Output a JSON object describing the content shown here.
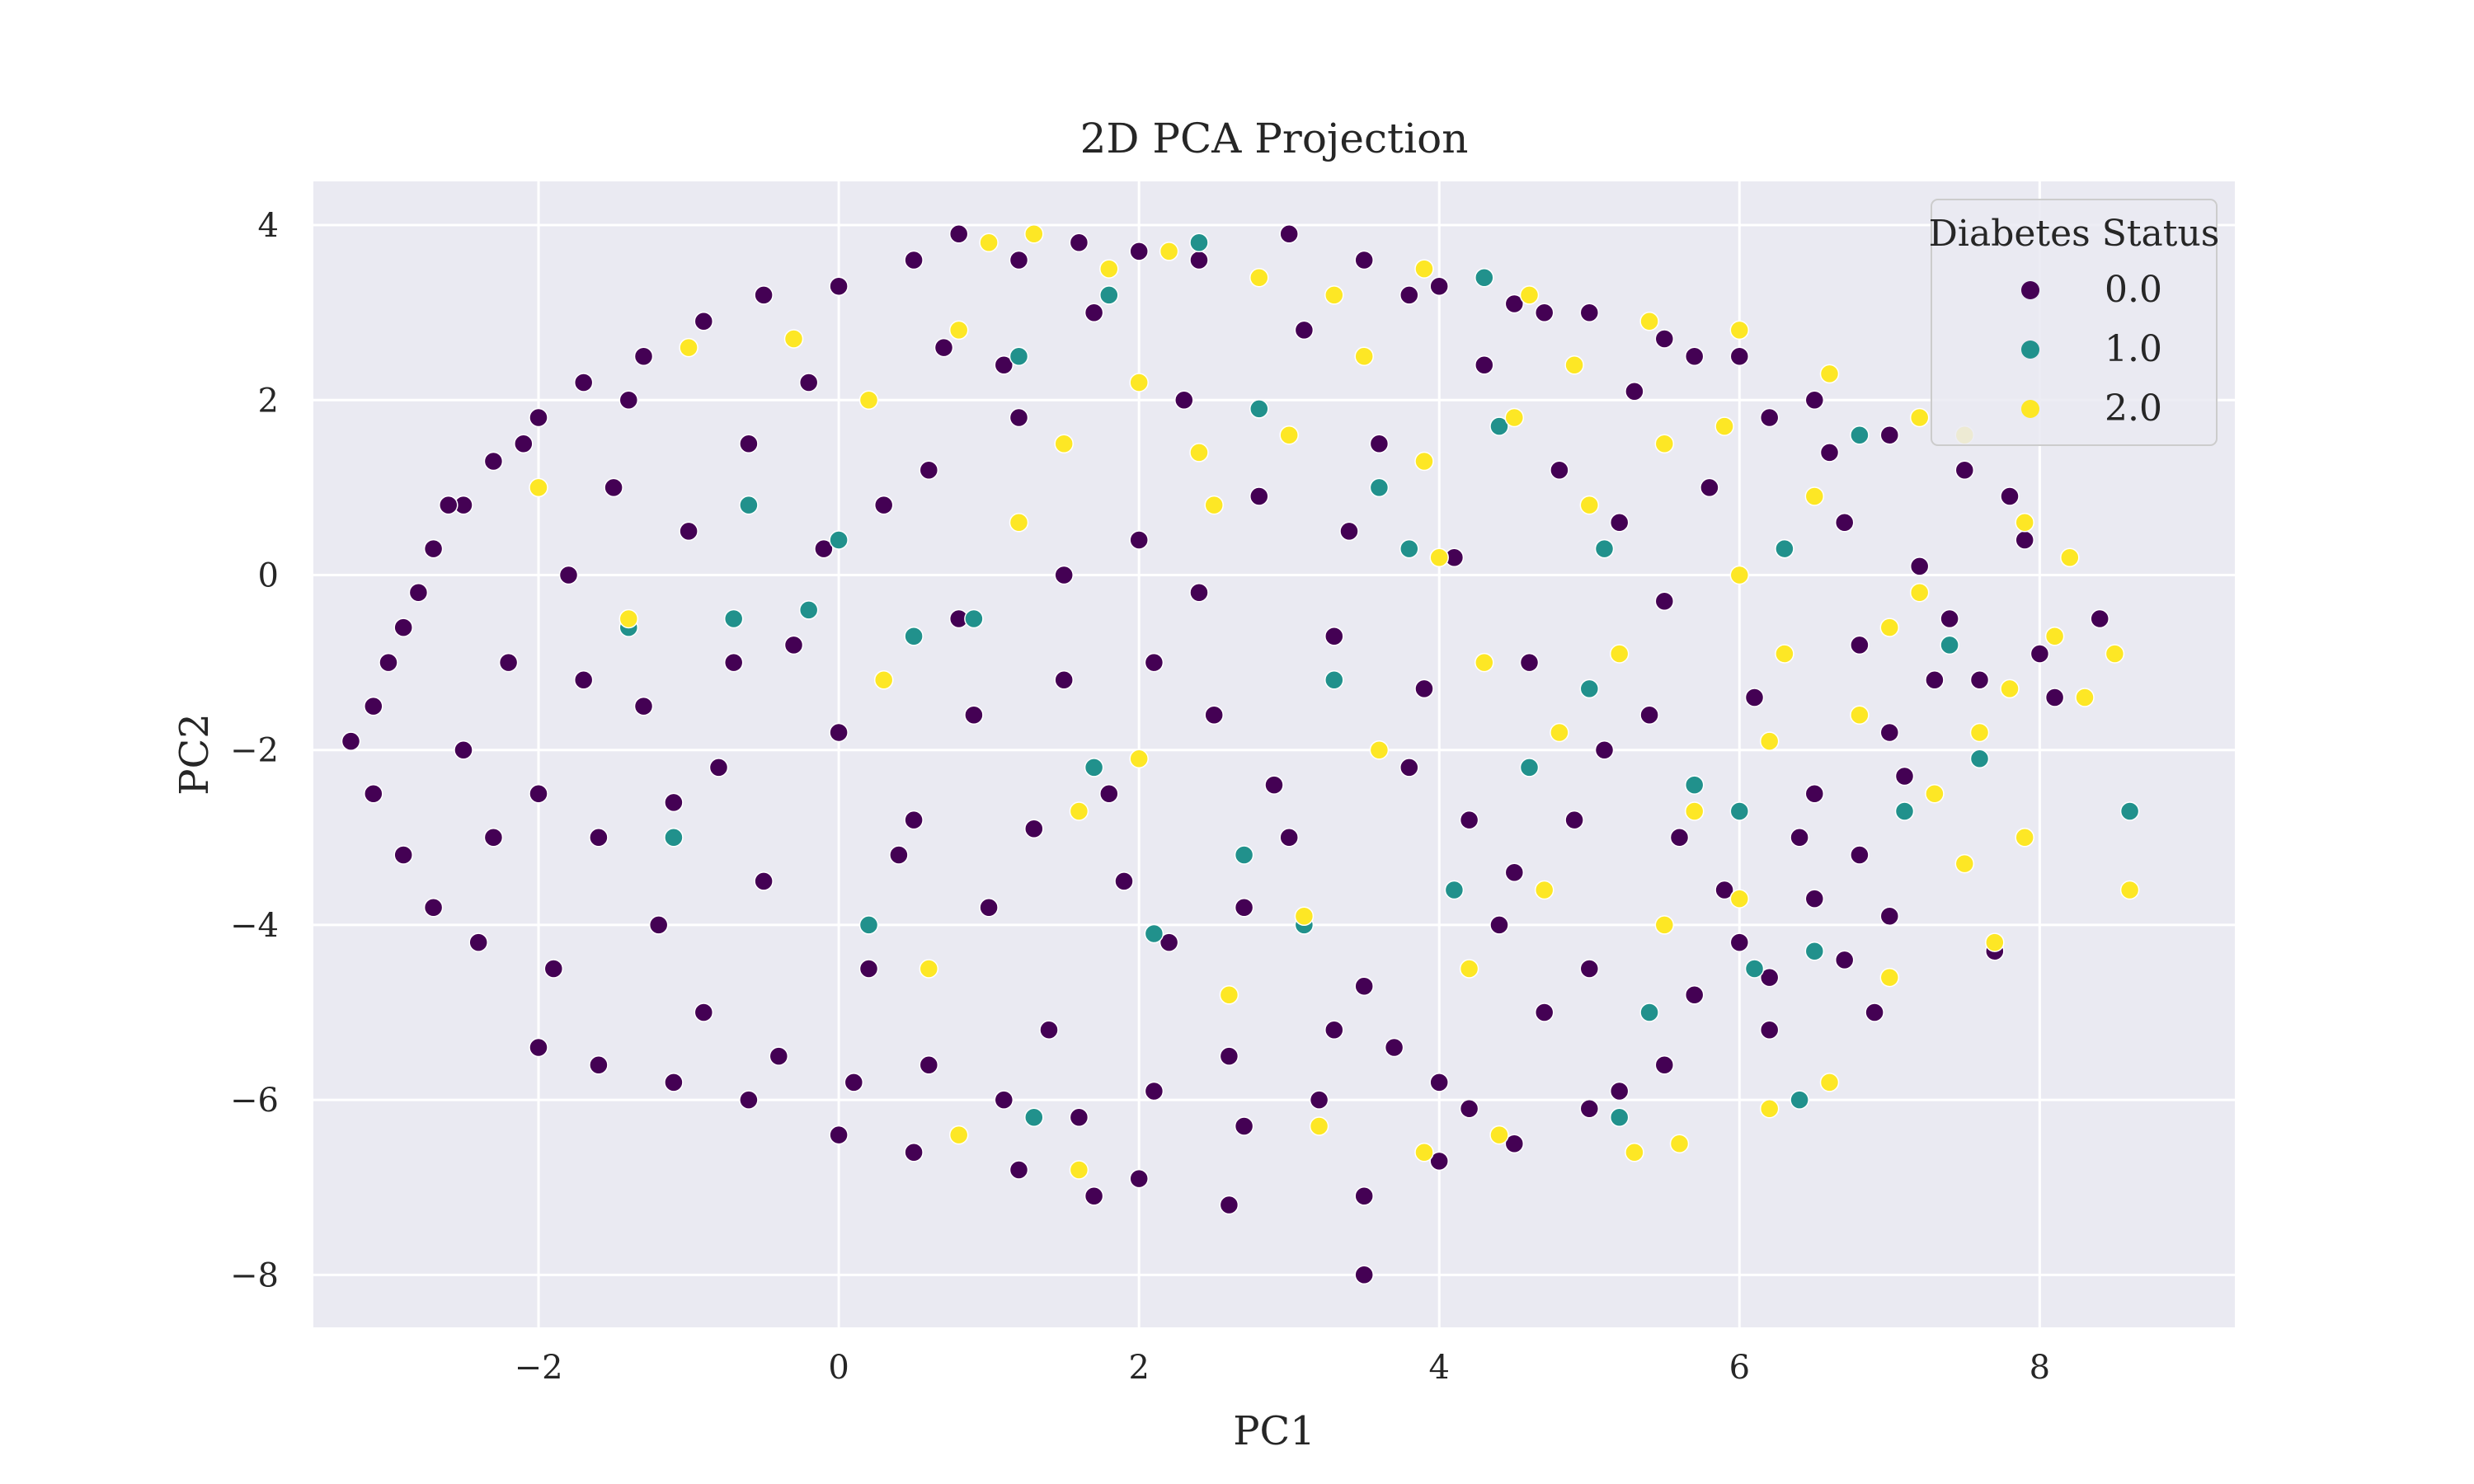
{
  "chart_data": {
    "type": "scatter",
    "title": "2D PCA Projection",
    "xlabel": "PC1",
    "ylabel": "PC2",
    "xlim": [
      -3.5,
      9.3
    ],
    "ylim": [
      -8.6,
      4.5
    ],
    "x_ticks": [
      -2,
      0,
      2,
      4,
      6,
      8
    ],
    "y_ticks": [
      4,
      2,
      0,
      -2,
      -4,
      -6,
      -8
    ],
    "x_tick_labels": [
      "−2",
      "0",
      "2",
      "4",
      "6",
      "8"
    ],
    "y_tick_labels": [
      "4",
      "2",
      "0",
      "−2",
      "−4",
      "−6",
      "−8"
    ],
    "grid": true,
    "legend": {
      "title": "Diabetes Status",
      "placement": "top-right",
      "entries": [
        "0.0",
        "1.0",
        "2.0"
      ]
    },
    "colors": {
      "background": "#eaeaf2",
      "grid": "#ffffff",
      "class_0": "#440154",
      "class_1": "#21918c",
      "class_2": "#fde725",
      "marker_edge": "#ffffff"
    },
    "series": [
      {
        "name": "0.0",
        "color": "#440154",
        "points": [
          [
            -3.25,
            -1.9
          ],
          [
            -3.1,
            -1.5
          ],
          [
            -3.0,
            -1.0
          ],
          [
            -2.9,
            -0.6
          ],
          [
            -2.8,
            -0.2
          ],
          [
            -2.7,
            0.3
          ],
          [
            -2.5,
            0.8
          ],
          [
            -2.3,
            1.3
          ],
          [
            -2.0,
            1.8
          ],
          [
            -1.7,
            2.2
          ],
          [
            -1.3,
            2.5
          ],
          [
            -0.9,
            2.9
          ],
          [
            -0.5,
            3.2
          ],
          [
            0.0,
            3.3
          ],
          [
            0.5,
            3.6
          ],
          [
            0.8,
            3.9
          ],
          [
            1.2,
            3.6
          ],
          [
            1.6,
            3.8
          ],
          [
            2.0,
            3.7
          ],
          [
            2.4,
            3.6
          ],
          [
            3.0,
            3.9
          ],
          [
            3.5,
            3.6
          ],
          [
            4.0,
            3.3
          ],
          [
            4.5,
            3.1
          ],
          [
            5.0,
            3.0
          ],
          [
            5.5,
            2.7
          ],
          [
            6.0,
            2.5
          ],
          [
            6.5,
            2.0
          ],
          [
            7.0,
            1.6
          ],
          [
            7.5,
            1.2
          ],
          [
            7.8,
            0.9
          ],
          [
            8.4,
            -0.5
          ],
          [
            8.0,
            -0.9
          ],
          [
            7.6,
            -1.2
          ],
          [
            7.1,
            -2.3
          ],
          [
            6.8,
            -3.2
          ],
          [
            6.5,
            -3.7
          ],
          [
            7.0,
            -3.9
          ],
          [
            7.7,
            -4.3
          ],
          [
            6.9,
            -5.0
          ],
          [
            6.2,
            -5.2
          ],
          [
            5.5,
            -5.6
          ],
          [
            5.0,
            -6.1
          ],
          [
            4.5,
            -6.5
          ],
          [
            4.0,
            -6.7
          ],
          [
            3.5,
            -7.1
          ],
          [
            3.5,
            -8.0
          ],
          [
            2.6,
            -7.2
          ],
          [
            2.0,
            -6.9
          ],
          [
            1.7,
            -7.1
          ],
          [
            1.2,
            -6.8
          ],
          [
            0.5,
            -6.6
          ],
          [
            0.0,
            -6.4
          ],
          [
            -0.6,
            -6.0
          ],
          [
            -1.1,
            -5.8
          ],
          [
            -1.6,
            -5.6
          ],
          [
            -2.0,
            -5.4
          ],
          [
            -2.4,
            -4.2
          ],
          [
            -2.7,
            -3.8
          ],
          [
            -2.9,
            -3.2
          ],
          [
            -3.1,
            -2.5
          ],
          [
            -2.5,
            -2.0
          ],
          [
            -2.2,
            -1.0
          ],
          [
            -2.0,
            -2.5
          ],
          [
            -1.8,
            0.0
          ],
          [
            -1.6,
            -3.0
          ],
          [
            -1.5,
            1.0
          ],
          [
            -1.3,
            -1.5
          ],
          [
            -1.2,
            -4.0
          ],
          [
            -1.0,
            0.5
          ],
          [
            -0.8,
            -2.2
          ],
          [
            -0.6,
            1.5
          ],
          [
            -0.5,
            -3.5
          ],
          [
            -0.3,
            -0.8
          ],
          [
            -0.2,
            2.2
          ],
          [
            0.0,
            -1.8
          ],
          [
            0.2,
            -4.5
          ],
          [
            0.3,
            0.8
          ],
          [
            0.5,
            -2.8
          ],
          [
            0.7,
            2.6
          ],
          [
            0.8,
            -0.5
          ],
          [
            1.0,
            -3.8
          ],
          [
            1.2,
            1.8
          ],
          [
            1.4,
            -5.2
          ],
          [
            1.5,
            -1.2
          ],
          [
            1.7,
            3.0
          ],
          [
            1.8,
            -2.5
          ],
          [
            2.0,
            0.4
          ],
          [
            2.2,
            -4.2
          ],
          [
            2.3,
            2.0
          ],
          [
            2.5,
            -1.6
          ],
          [
            2.6,
            -5.5
          ],
          [
            2.8,
            0.9
          ],
          [
            3.0,
            -3.0
          ],
          [
            3.1,
            2.8
          ],
          [
            3.3,
            -0.7
          ],
          [
            3.5,
            -4.7
          ],
          [
            3.6,
            1.5
          ],
          [
            3.8,
            -2.2
          ],
          [
            4.0,
            -5.8
          ],
          [
            4.1,
            0.2
          ],
          [
            4.3,
            2.4
          ],
          [
            4.5,
            -3.4
          ],
          [
            4.6,
            -1.0
          ],
          [
            4.8,
            1.2
          ],
          [
            5.0,
            -4.5
          ],
          [
            5.1,
            -2.0
          ],
          [
            5.3,
            2.1
          ],
          [
            5.5,
            -0.3
          ],
          [
            5.6,
            -3.0
          ],
          [
            5.8,
            1.0
          ],
          [
            6.0,
            -4.2
          ],
          [
            6.1,
            -1.4
          ],
          [
            6.3,
            0.3
          ],
          [
            6.5,
            -2.5
          ],
          [
            6.6,
            1.4
          ],
          [
            6.8,
            -0.8
          ],
          [
            7.0,
            -1.8
          ],
          [
            7.2,
            0.1
          ],
          [
            7.4,
            -0.5
          ],
          [
            -2.6,
            0.8
          ],
          [
            -2.1,
            1.5
          ],
          [
            -1.9,
            -4.5
          ],
          [
            -1.4,
            2.0
          ],
          [
            -0.9,
            -5.0
          ],
          [
            -0.4,
            -5.5
          ],
          [
            0.1,
            -5.8
          ],
          [
            0.6,
            -5.6
          ],
          [
            1.1,
            -6.0
          ],
          [
            1.6,
            -6.2
          ],
          [
            2.1,
            -5.9
          ],
          [
            2.7,
            -6.3
          ],
          [
            3.2,
            -6.0
          ],
          [
            3.7,
            -5.4
          ],
          [
            4.2,
            -6.1
          ],
          [
            4.7,
            -5.0
          ],
          [
            5.2,
            -5.9
          ],
          [
            5.7,
            -4.8
          ],
          [
            6.2,
            -4.6
          ],
          [
            6.7,
            -4.4
          ],
          [
            -1.1,
            -2.6
          ],
          [
            -0.7,
            -1.0
          ],
          [
            0.4,
            -3.2
          ],
          [
            0.9,
            -1.6
          ],
          [
            1.3,
            -2.9
          ],
          [
            1.9,
            -3.5
          ],
          [
            2.4,
            -0.2
          ],
          [
            2.9,
            -2.4
          ],
          [
            3.4,
            0.5
          ],
          [
            3.9,
            -1.3
          ],
          [
            4.4,
            -4.0
          ],
          [
            4.9,
            -2.8
          ],
          [
            5.4,
            -1.6
          ],
          [
            5.9,
            -3.6
          ],
          [
            6.4,
            -3.0
          ],
          [
            -2.3,
            -3.0
          ],
          [
            -1.7,
            -1.2
          ],
          [
            -0.1,
            0.3
          ],
          [
            0.6,
            1.2
          ],
          [
            1.1,
            2.4
          ],
          [
            1.5,
            0.0
          ],
          [
            2.1,
            -1.0
          ],
          [
            2.7,
            -3.8
          ],
          [
            3.3,
            -5.2
          ],
          [
            3.8,
            3.2
          ],
          [
            4.2,
            -2.8
          ],
          [
            4.7,
            3.0
          ],
          [
            5.2,
            0.6
          ],
          [
            5.7,
            2.5
          ],
          [
            6.2,
            1.8
          ],
          [
            6.7,
            0.6
          ],
          [
            7.3,
            -1.2
          ],
          [
            7.9,
            0.4
          ],
          [
            8.1,
            -1.4
          ]
        ]
      },
      {
        "name": "1.0",
        "color": "#21918c",
        "points": [
          [
            -1.1,
            -3.0
          ],
          [
            -0.7,
            -0.5
          ],
          [
            -0.6,
            0.8
          ],
          [
            -0.2,
            -0.4
          ],
          [
            0.2,
            -4.0
          ],
          [
            0.5,
            -0.7
          ],
          [
            0.9,
            -0.5
          ],
          [
            1.2,
            2.5
          ],
          [
            1.3,
            -6.2
          ],
          [
            1.7,
            -2.2
          ],
          [
            1.8,
            3.2
          ],
          [
            2.1,
            -4.1
          ],
          [
            2.4,
            3.8
          ],
          [
            2.7,
            -3.2
          ],
          [
            2.8,
            1.9
          ],
          [
            3.1,
            -4.0
          ],
          [
            3.3,
            -1.2
          ],
          [
            3.8,
            0.3
          ],
          [
            4.1,
            -3.6
          ],
          [
            4.4,
            1.7
          ],
          [
            4.6,
            -2.2
          ],
          [
            5.0,
            -1.3
          ],
          [
            5.1,
            0.3
          ],
          [
            5.4,
            -5.0
          ],
          [
            5.7,
            -2.4
          ],
          [
            6.0,
            -2.7
          ],
          [
            6.1,
            -4.5
          ],
          [
            6.3,
            0.3
          ],
          [
            6.5,
            -4.3
          ],
          [
            6.8,
            1.6
          ],
          [
            7.1,
            -2.7
          ],
          [
            7.6,
            -2.1
          ],
          [
            8.6,
            -2.7
          ],
          [
            7.4,
            -0.8
          ],
          [
            6.4,
            -6.0
          ],
          [
            5.2,
            -6.2
          ],
          [
            4.3,
            3.4
          ],
          [
            -1.4,
            -0.6
          ],
          [
            0.0,
            0.4
          ],
          [
            3.6,
            1.0
          ]
        ]
      },
      {
        "name": "2.0",
        "color": "#fde725",
        "points": [
          [
            1.0,
            3.8
          ],
          [
            1.3,
            3.9
          ],
          [
            1.8,
            3.5
          ],
          [
            2.2,
            3.7
          ],
          [
            2.8,
            3.4
          ],
          [
            3.3,
            3.2
          ],
          [
            3.9,
            3.5
          ],
          [
            4.6,
            3.2
          ],
          [
            5.4,
            2.9
          ],
          [
            6.0,
            2.8
          ],
          [
            6.6,
            2.3
          ],
          [
            7.2,
            1.8
          ],
          [
            7.5,
            1.6
          ],
          [
            7.9,
            0.6
          ],
          [
            8.2,
            0.2
          ],
          [
            8.1,
            -0.7
          ],
          [
            8.5,
            -0.9
          ],
          [
            8.3,
            -1.4
          ],
          [
            7.8,
            -1.3
          ],
          [
            7.6,
            -1.8
          ],
          [
            7.3,
            -2.5
          ],
          [
            7.5,
            -3.3
          ],
          [
            7.9,
            -3.0
          ],
          [
            7.7,
            -4.2
          ],
          [
            8.6,
            -3.6
          ],
          [
            7.0,
            -4.6
          ],
          [
            6.6,
            -5.8
          ],
          [
            6.2,
            -6.1
          ],
          [
            5.6,
            -6.5
          ],
          [
            5.3,
            -6.6
          ],
          [
            4.4,
            -6.4
          ],
          [
            3.9,
            -6.6
          ],
          [
            3.2,
            -6.3
          ],
          [
            1.6,
            -6.8
          ],
          [
            0.8,
            -6.4
          ],
          [
            -0.3,
            2.7
          ],
          [
            0.2,
            2.0
          ],
          [
            0.8,
            2.8
          ],
          [
            1.5,
            1.5
          ],
          [
            2.0,
            2.2
          ],
          [
            2.5,
            0.8
          ],
          [
            3.0,
            1.6
          ],
          [
            3.5,
            2.5
          ],
          [
            4.0,
            0.2
          ],
          [
            4.5,
            1.8
          ],
          [
            5.0,
            0.8
          ],
          [
            5.5,
            1.5
          ],
          [
            6.0,
            0.0
          ],
          [
            6.5,
            0.9
          ],
          [
            7.0,
            -0.6
          ],
          [
            5.2,
            -0.9
          ],
          [
            4.8,
            -1.8
          ],
          [
            6.2,
            -1.9
          ],
          [
            5.7,
            -2.7
          ],
          [
            4.7,
            -3.6
          ],
          [
            5.5,
            -4.0
          ],
          [
            6.0,
            -3.7
          ],
          [
            4.2,
            -4.5
          ],
          [
            3.1,
            -3.9
          ],
          [
            2.6,
            -4.8
          ],
          [
            2.0,
            -2.1
          ],
          [
            1.6,
            -2.7
          ],
          [
            3.6,
            -2.0
          ],
          [
            4.3,
            -1.0
          ],
          [
            6.8,
            -1.6
          ],
          [
            7.2,
            -0.2
          ],
          [
            6.3,
            -0.9
          ],
          [
            5.9,
            1.7
          ],
          [
            4.9,
            2.4
          ],
          [
            3.9,
            1.3
          ],
          [
            2.4,
            1.4
          ],
          [
            1.2,
            0.6
          ],
          [
            0.3,
            -1.2
          ],
          [
            -1.0,
            2.6
          ],
          [
            -2.0,
            1.0
          ],
          [
            -1.4,
            -0.5
          ],
          [
            0.6,
            -4.5
          ]
        ]
      }
    ]
  }
}
